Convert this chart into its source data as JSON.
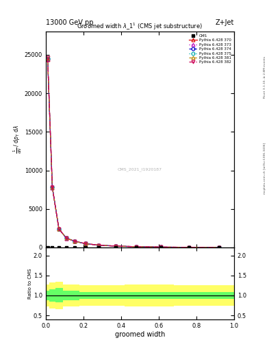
{
  "title": "Groomed width $\\lambda$_1$^1$ (CMS jet substructure)",
  "header_left": "13000 GeV pp",
  "header_right": "Z+Jet",
  "watermark": "CMS_2021_I1920187",
  "xlabel": "groomed width",
  "ylabel_ratio": "Ratio to CMS",
  "right_label": "mcplots.cern.ch [arXiv:1306.3436]",
  "right_label2": "Rivet 3.1.10, ≥ 2.8M events",
  "main_x": [
    0.01,
    0.035,
    0.07,
    0.11,
    0.155,
    0.21,
    0.28,
    0.37,
    0.48,
    0.61,
    0.76,
    0.92
  ],
  "main_y": [
    24500,
    7800,
    2400,
    1200,
    800,
    500,
    300,
    180,
    100,
    50,
    20,
    8
  ],
  "ylim_main": [
    0,
    28000
  ],
  "yticks_main": [
    0,
    5000,
    10000,
    15000,
    20000,
    25000
  ],
  "ylim_ratio": [
    0.4,
    2.2
  ],
  "yticks_ratio": [
    0.5,
    1.0,
    1.5,
    2.0
  ],
  "ratio_x_edges": [
    0.0,
    0.02,
    0.05,
    0.09,
    0.13,
    0.18,
    0.24,
    0.32,
    0.42,
    0.54,
    0.68,
    0.84,
    1.0
  ],
  "yellow_low": [
    0.72,
    0.68,
    0.65,
    0.72,
    0.72,
    0.75,
    0.75,
    0.75,
    0.72,
    0.72,
    0.75,
    0.75
  ],
  "yellow_high": [
    1.28,
    1.32,
    1.35,
    1.28,
    1.28,
    1.25,
    1.25,
    1.25,
    1.28,
    1.28,
    1.25,
    1.25
  ],
  "green_low": [
    0.88,
    0.85,
    0.82,
    0.88,
    0.88,
    0.92,
    0.92,
    0.92,
    0.92,
    0.92,
    0.92,
    0.92
  ],
  "green_high": [
    1.12,
    1.15,
    1.18,
    1.12,
    1.12,
    1.08,
    1.08,
    1.08,
    1.08,
    1.08,
    1.08,
    1.08
  ],
  "series": [
    {
      "label": "Pythia 6.428 370",
      "color": "#dd0000",
      "marker": "^",
      "linestyle": "-",
      "mfc": "none"
    },
    {
      "label": "Pythia 6.428 373",
      "color": "#bb00bb",
      "marker": "^",
      "linestyle": ":",
      "mfc": "none"
    },
    {
      "label": "Pythia 6.428 374",
      "color": "#0000cc",
      "marker": "o",
      "linestyle": "--",
      "mfc": "none"
    },
    {
      "label": "Pythia 6.428 375",
      "color": "#00aaaa",
      "marker": "o",
      "linestyle": ":",
      "mfc": "none"
    },
    {
      "label": "Pythia 6.428 381",
      "color": "#bb8800",
      "marker": "^",
      "linestyle": "--",
      "mfc": "none"
    },
    {
      "label": "Pythia 6.428 382",
      "color": "#cc0055",
      "marker": "v",
      "linestyle": "-.",
      "mfc": "none"
    }
  ]
}
